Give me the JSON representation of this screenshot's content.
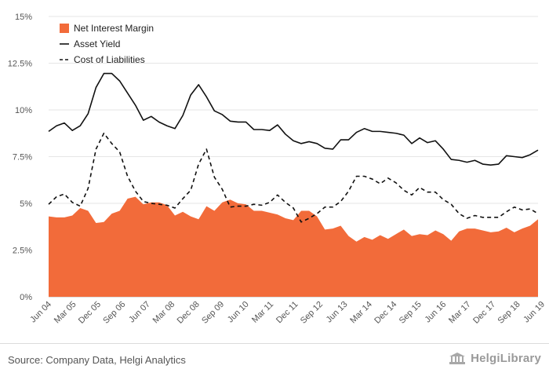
{
  "chart_data": {
    "type": "area",
    "x_tick_labels": [
      "Jun 04",
      "Mar 05",
      "Dec 05",
      "Sep 06",
      "Jun 07",
      "Mar 08",
      "Dec 08",
      "Sep 09",
      "Jun 10",
      "Mar 11",
      "Dec 11",
      "Sep 12",
      "Jun 13",
      "Mar 14",
      "Dec 14",
      "Sep 15",
      "Jun 16",
      "Mar 17",
      "Dec 17",
      "Sep 18",
      "Jun 19"
    ],
    "y_ticks": [
      "0%",
      "2.5%",
      "5%",
      "7.5%",
      "10%",
      "12.5%",
      "15%"
    ],
    "ylim": [
      0,
      15
    ],
    "grid": "horizontal",
    "legend_position": "top-left",
    "series": [
      {
        "name": "Net Interest Margin",
        "style": "area",
        "color": "#f26b3a",
        "values": [
          4.3,
          4.25,
          4.25,
          4.35,
          4.75,
          4.6,
          3.95,
          4.0,
          4.45,
          4.6,
          5.25,
          5.35,
          4.95,
          5.05,
          5.05,
          4.9,
          4.35,
          4.55,
          4.3,
          4.15,
          4.85,
          4.6,
          5.05,
          5.2,
          5.0,
          4.95,
          4.6,
          4.6,
          4.5,
          4.4,
          4.2,
          4.1,
          4.6,
          4.6,
          4.3,
          3.6,
          3.65,
          3.8,
          3.25,
          2.95,
          3.2,
          3.05,
          3.3,
          3.1,
          3.35,
          3.6,
          3.25,
          3.35,
          3.3,
          3.55,
          3.35,
          3.0,
          3.5,
          3.65,
          3.65,
          3.55,
          3.45,
          3.5,
          3.7,
          3.45,
          3.65,
          3.8,
          4.15
        ]
      },
      {
        "name": "Asset Yield",
        "style": "solid",
        "color": "#111111",
        "values": [
          8.85,
          9.15,
          9.3,
          8.9,
          9.15,
          9.8,
          11.2,
          11.95,
          11.95,
          11.55,
          10.9,
          10.25,
          9.45,
          9.65,
          9.35,
          9.15,
          9.0,
          9.7,
          10.8,
          11.35,
          10.7,
          9.95,
          9.75,
          9.4,
          9.35,
          9.35,
          8.95,
          8.95,
          8.9,
          9.2,
          8.7,
          8.35,
          8.2,
          8.3,
          8.2,
          7.95,
          7.9,
          8.4,
          8.4,
          8.8,
          9.0,
          8.85,
          8.85,
          8.8,
          8.75,
          8.65,
          8.2,
          8.5,
          8.25,
          8.35,
          7.9,
          7.35,
          7.3,
          7.2,
          7.3,
          7.1,
          7.05,
          7.1,
          7.55,
          7.5,
          7.45,
          7.6,
          7.85
        ]
      },
      {
        "name": "Cost of Liabilities",
        "style": "dashed",
        "color": "#111111",
        "values": [
          4.95,
          5.35,
          5.5,
          5.05,
          4.85,
          5.8,
          7.9,
          8.75,
          8.2,
          7.75,
          6.45,
          5.65,
          5.1,
          5.0,
          4.95,
          4.9,
          4.75,
          5.25,
          5.7,
          7.1,
          7.9,
          6.4,
          5.75,
          4.8,
          4.85,
          4.85,
          4.95,
          4.9,
          5.05,
          5.45,
          5.05,
          4.75,
          4.0,
          4.2,
          4.45,
          4.8,
          4.8,
          5.1,
          5.65,
          6.45,
          6.45,
          6.3,
          6.05,
          6.35,
          6.1,
          5.7,
          5.45,
          5.85,
          5.6,
          5.6,
          5.2,
          4.95,
          4.45,
          4.2,
          4.35,
          4.25,
          4.25,
          4.25,
          4.55,
          4.8,
          4.65,
          4.7,
          4.45
        ]
      }
    ]
  },
  "footer": {
    "source": "Source: Company Data, Helgi Analytics",
    "logo_text": "HelgiLibrary"
  }
}
